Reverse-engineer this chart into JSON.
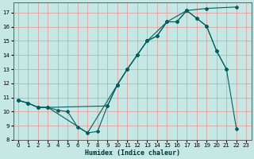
{
  "xlabel": "Humidex (Indice chaleur)",
  "bg_color": "#c5e8e4",
  "grid_color": "#e8a0a0",
  "line_color": "#006060",
  "xlim": [
    -0.5,
    23.5
  ],
  "ylim": [
    8,
    17.7
  ],
  "yticks": [
    8,
    9,
    10,
    11,
    12,
    13,
    14,
    15,
    16,
    17
  ],
  "xticks": [
    0,
    1,
    2,
    3,
    4,
    5,
    6,
    7,
    8,
    9,
    10,
    11,
    12,
    13,
    14,
    15,
    16,
    17,
    18,
    19,
    20,
    21,
    22,
    23
  ],
  "curve1_x": [
    0,
    1,
    2,
    3,
    4,
    5,
    6,
    7,
    8,
    9,
    10,
    11,
    12,
    13,
    14,
    15,
    16,
    17,
    18,
    19,
    20,
    21
  ],
  "curve1_y": [
    10.8,
    10.6,
    10.3,
    10.3,
    10.1,
    10.0,
    8.9,
    8.5,
    8.6,
    10.4,
    11.9,
    13.0,
    14.0,
    15.0,
    15.35,
    16.35,
    16.35,
    17.15,
    16.6,
    16.05,
    14.3,
    13.0
  ],
  "curve2_x": [
    0,
    1,
    2,
    3,
    9,
    10,
    11,
    12,
    13,
    14,
    15,
    16,
    17,
    18,
    19,
    20,
    21,
    22
  ],
  "curve2_y": [
    10.8,
    10.6,
    10.3,
    10.3,
    10.4,
    11.9,
    13.0,
    14.0,
    15.0,
    15.35,
    16.35,
    16.35,
    17.15,
    16.6,
    16.05,
    14.3,
    13.0,
    8.8
  ],
  "curve3_x": [
    0,
    1,
    2,
    3,
    7,
    10,
    11,
    12,
    13,
    15,
    17,
    19,
    22
  ],
  "curve3_y": [
    10.8,
    10.6,
    10.3,
    10.3,
    8.5,
    11.9,
    13.0,
    14.0,
    15.0,
    16.35,
    17.15,
    17.3,
    17.4
  ]
}
